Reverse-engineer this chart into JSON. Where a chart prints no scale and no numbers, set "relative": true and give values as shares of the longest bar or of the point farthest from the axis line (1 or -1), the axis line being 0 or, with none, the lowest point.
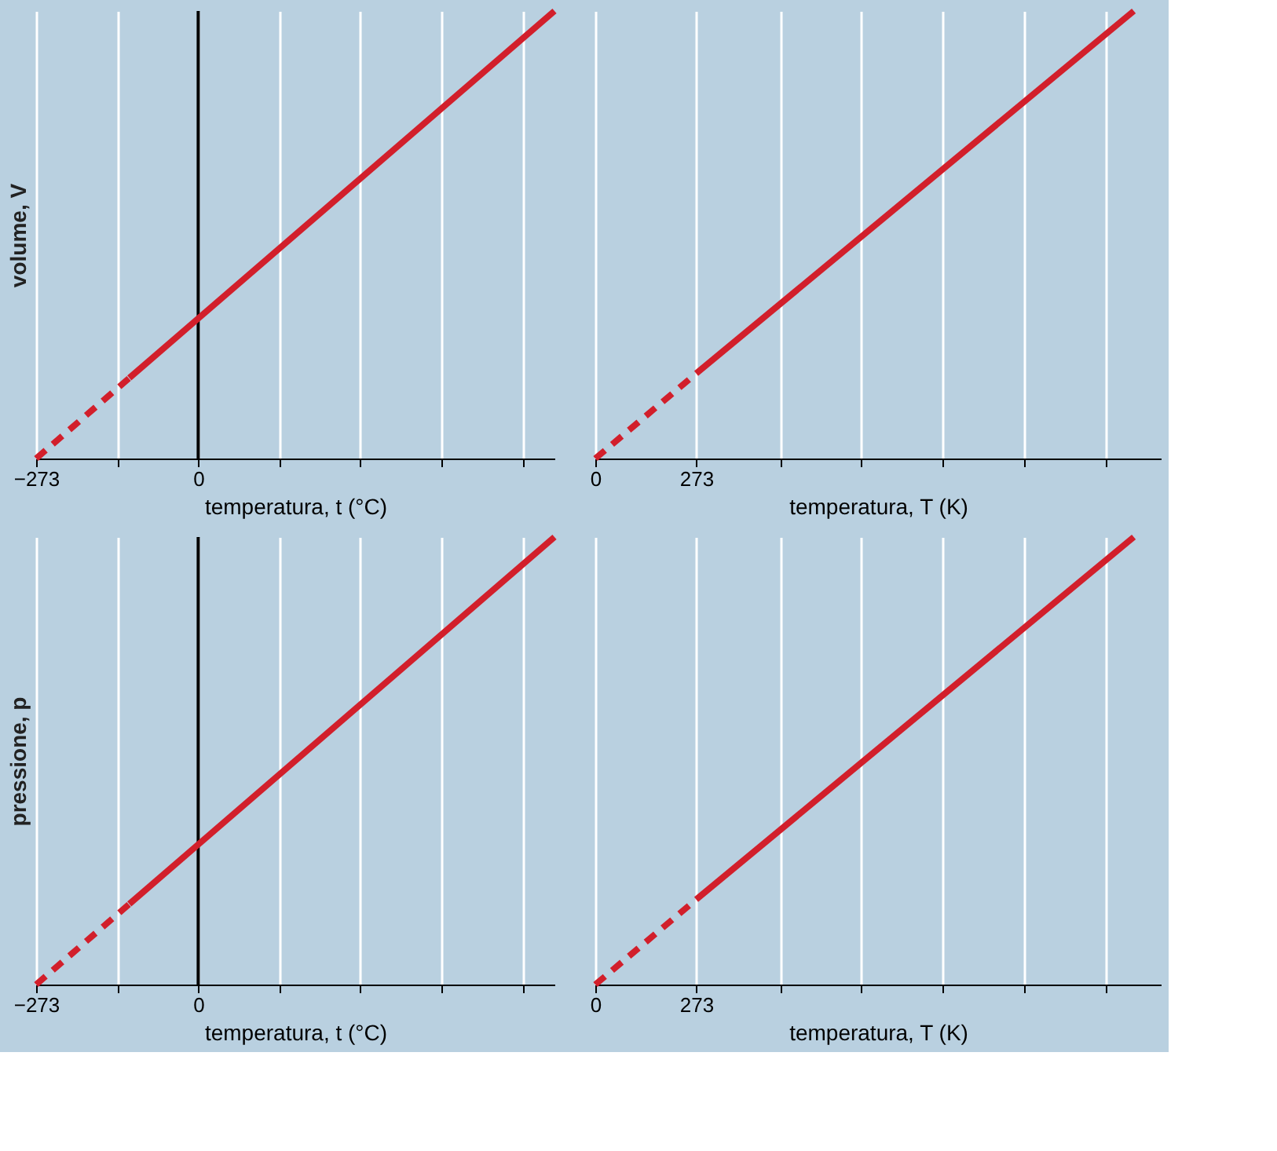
{
  "chart_data": [
    {
      "type": "line",
      "relative": true,
      "ylabel": "volume, V",
      "xlabel": "temperatura, t (°C)",
      "xlim": [
        -273,
        600
      ],
      "xticks": [
        {
          "value": -273,
          "label": "−273"
        },
        {
          "value": -136.5,
          "label": null
        },
        0,
        {
          "value": 136.5,
          "label": null
        },
        {
          "value": 273,
          "label": null
        },
        {
          "value": 409.5,
          "label": null
        },
        {
          "value": 546,
          "label": null
        }
      ],
      "grid": "x",
      "ref_lines": [
        {
          "axis": "x",
          "value": 0,
          "color": "#000000"
        }
      ],
      "series": [
        {
          "color": "#d21f2b",
          "line_style": "dashed",
          "x": [
            -273,
            -116
          ],
          "values": [
            0,
            0.18
          ]
        },
        {
          "color": "#d21f2b",
          "line_style": "solid",
          "x": [
            -116,
            600
          ],
          "values": [
            0.18,
            1
          ]
        }
      ]
    },
    {
      "type": "line",
      "relative": true,
      "xlabel": "temperatura, T (K)",
      "xlim": [
        0,
        1530
      ],
      "xticks": [
        0,
        273,
        {
          "value": 500,
          "label": null
        },
        {
          "value": 720,
          "label": null
        },
        {
          "value": 940,
          "label": null
        },
        {
          "value": 1160,
          "label": null
        },
        {
          "value": 1380,
          "label": null
        }
      ],
      "grid": "x",
      "series": [
        {
          "color": "#d21f2b",
          "line_style": "dashed",
          "x": [
            0,
            273
          ],
          "values": [
            0,
            0.19
          ]
        },
        {
          "color": "#d21f2b",
          "line_style": "solid",
          "x": [
            273,
            1457
          ],
          "values": [
            0.19,
            1
          ]
        }
      ]
    },
    {
      "type": "line",
      "relative": true,
      "ylabel": "pressione, p",
      "xlabel": "temperatura, t (°C)",
      "xlim": [
        -273,
        600
      ],
      "xticks": [
        {
          "value": -273,
          "label": "−273"
        },
        {
          "value": -136.5,
          "label": null
        },
        0,
        {
          "value": 136.5,
          "label": null
        },
        {
          "value": 273,
          "label": null
        },
        {
          "value": 409.5,
          "label": null
        },
        {
          "value": 546,
          "label": null
        }
      ],
      "grid": "x",
      "ref_lines": [
        {
          "axis": "x",
          "value": 0,
          "color": "#000000"
        }
      ],
      "series": [
        {
          "color": "#d21f2b",
          "line_style": "dashed",
          "x": [
            -273,
            -116
          ],
          "values": [
            0,
            0.18
          ]
        },
        {
          "color": "#d21f2b",
          "line_style": "solid",
          "x": [
            -116,
            600
          ],
          "values": [
            0.18,
            1
          ]
        }
      ]
    },
    {
      "type": "line",
      "relative": true,
      "xlabel": "temperatura, T (K)",
      "xlim": [
        0,
        1530
      ],
      "xticks": [
        0,
        273,
        {
          "value": 500,
          "label": null
        },
        {
          "value": 720,
          "label": null
        },
        {
          "value": 940,
          "label": null
        },
        {
          "value": 1160,
          "label": null
        },
        {
          "value": 1380,
          "label": null
        }
      ],
      "grid": "x",
      "series": [
        {
          "color": "#d21f2b",
          "line_style": "dashed",
          "x": [
            0,
            273
          ],
          "values": [
            0,
            0.19
          ]
        },
        {
          "color": "#d21f2b",
          "line_style": "solid",
          "x": [
            273,
            1457
          ],
          "values": [
            0.19,
            1
          ]
        }
      ]
    }
  ]
}
